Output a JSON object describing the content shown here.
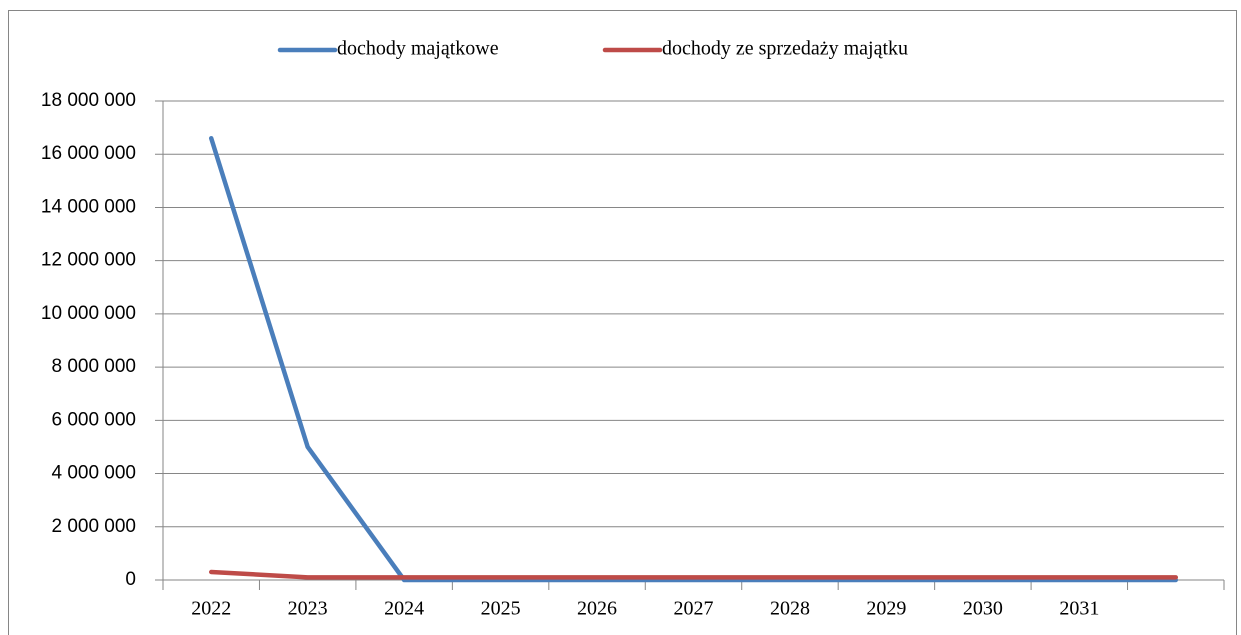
{
  "chart_data": {
    "type": "line",
    "categories": [
      "2022",
      "2023",
      "2024",
      "2025",
      "2026",
      "2027",
      "2028",
      "2029",
      "2030",
      "2031",
      null
    ],
    "series": [
      {
        "name": "dochody majątkowe",
        "color": "#4a7ebb",
        "values": [
          16600000,
          5000000,
          0,
          0,
          0,
          0,
          0,
          0,
          0,
          0,
          0
        ]
      },
      {
        "name": "dochody ze sprzedaży majątku",
        "color": "#be4b48",
        "values": [
          300000,
          100000,
          100000,
          100000,
          100000,
          100000,
          100000,
          100000,
          100000,
          100000,
          100000
        ]
      }
    ],
    "ylim": [
      0,
      18000000
    ],
    "yticks": [
      0,
      {
        "value": 2000000,
        "label": "2 000 000"
      },
      {
        "value": 4000000,
        "label": "4 000 000"
      },
      {
        "value": 6000000,
        "label": "6 000 000"
      },
      {
        "value": 8000000,
        "label": "8 000 000"
      },
      {
        "value": 10000000,
        "label": "10 000 000"
      },
      {
        "value": 12000000,
        "label": "12 000 000"
      },
      {
        "value": 14000000,
        "label": "14 000 000"
      },
      {
        "value": 16000000,
        "label": "16 000 000"
      },
      {
        "value": 18000000,
        "label": "18 000 000"
      }
    ],
    "grid": true,
    "legend": "top"
  }
}
